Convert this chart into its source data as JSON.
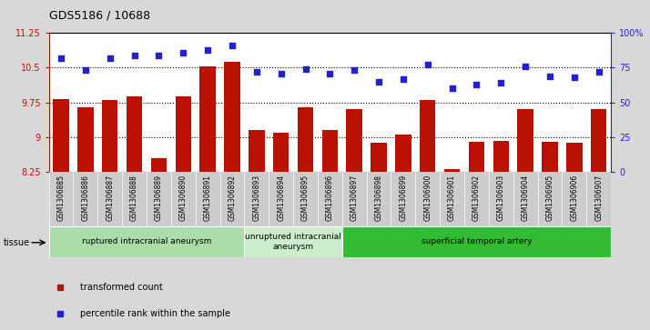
{
  "title": "GDS5186 / 10688",
  "samples": [
    "GSM1306885",
    "GSM1306886",
    "GSM1306887",
    "GSM1306888",
    "GSM1306889",
    "GSM1306890",
    "GSM1306891",
    "GSM1306892",
    "GSM1306893",
    "GSM1306894",
    "GSM1306895",
    "GSM1306896",
    "GSM1306897",
    "GSM1306898",
    "GSM1306899",
    "GSM1306900",
    "GSM1306901",
    "GSM1306902",
    "GSM1306903",
    "GSM1306904",
    "GSM1306905",
    "GSM1306906",
    "GSM1306907"
  ],
  "transformed_count": [
    9.82,
    9.65,
    9.8,
    9.87,
    8.55,
    9.87,
    10.53,
    10.62,
    9.15,
    9.1,
    9.65,
    9.15,
    9.6,
    8.88,
    9.06,
    9.8,
    8.3,
    8.9,
    8.92,
    9.6,
    8.9,
    8.88,
    9.6
  ],
  "percentile_rank": [
    82,
    73,
    82,
    84,
    84,
    86,
    88,
    91,
    72,
    71,
    74,
    71,
    73,
    65,
    67,
    77,
    60,
    63,
    64,
    76,
    69,
    68,
    72
  ],
  "ylim_left": [
    8.25,
    11.25
  ],
  "ylim_right": [
    0,
    100
  ],
  "yticks_left": [
    8.25,
    9.0,
    9.75,
    10.5,
    11.25
  ],
  "ytick_labels_left": [
    "8.25",
    "9",
    "9.75",
    "10.5",
    "11.25"
  ],
  "yticks_right": [
    0,
    25,
    50,
    75,
    100
  ],
  "ytick_labels_right": [
    "0",
    "25",
    "50",
    "75",
    "100%"
  ],
  "bar_color": "#bb1100",
  "dot_color": "#2222cc",
  "background_color": "#d8d8d8",
  "plot_bg_color": "#ffffff",
  "label_bg_color": "#cccccc",
  "groups": [
    {
      "label": "ruptured intracranial aneurysm",
      "start": 0,
      "end": 7,
      "color": "#aaddaa"
    },
    {
      "label": "unruptured intracranial\naneurysm",
      "start": 8,
      "end": 11,
      "color": "#cceecc"
    },
    {
      "label": "superficial temporal artery",
      "start": 12,
      "end": 22,
      "color": "#33bb33"
    }
  ],
  "tissue_label": "tissue",
  "legend_items": [
    {
      "label": "transformed count",
      "color": "#bb1100"
    },
    {
      "label": "percentile rank within the sample",
      "color": "#2222cc"
    }
  ],
  "dotted_lines": [
    9.0,
    9.75,
    10.5
  ],
  "bar_bottom": 8.25
}
